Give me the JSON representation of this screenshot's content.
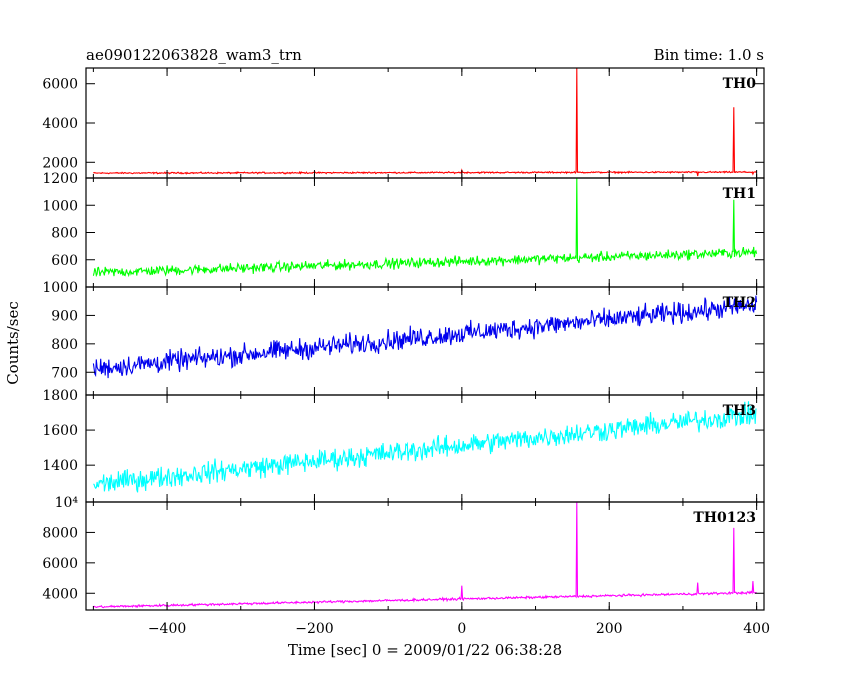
{
  "header": {
    "title": "ae090122063828_wam3_trn",
    "bin_time": "Bin time: 1.0 s"
  },
  "chart_data": {
    "type": "line",
    "xlabel": "Time [sec] 0 = 2009/01/22 06:38:28",
    "ylabel": "Counts/sec",
    "xlim": [
      -510,
      410
    ],
    "x_ticks": [
      -400,
      -200,
      0,
      200,
      400
    ],
    "x_tick_labels": [
      "−400",
      "−200",
      "0",
      "200",
      "400"
    ],
    "panels": [
      {
        "name": "TH0",
        "color": "#ff0000",
        "ylim": [
          1200,
          6800
        ],
        "y_ticks": [
          1200,
          2000,
          4000,
          6000
        ],
        "y_tick_labels": [
          "1200",
          "2000",
          "4000",
          "6000"
        ],
        "baseline": [
          [
            -500,
            1450
          ],
          [
            400,
            1500
          ]
        ],
        "noise": 30,
        "spikes": [
          [
            0,
            1600
          ],
          [
            156,
            6800
          ],
          [
            320,
            1300
          ],
          [
            369,
            4800
          ],
          [
            395,
            1400
          ]
        ]
      },
      {
        "name": "TH1",
        "color": "#00ff00",
        "ylim": [
          400,
          1200
        ],
        "y_ticks": [
          600,
          800,
          1000
        ],
        "y_tick_labels": [
          "600",
          "800",
          "1000"
        ],
        "baseline": [
          [
            -500,
            505
          ],
          [
            400,
            655
          ]
        ],
        "noise": 30,
        "spikes": [
          [
            156,
            1200
          ],
          [
            369,
            1040
          ]
        ]
      },
      {
        "name": "TH2",
        "color": "#0000ee",
        "ylim": [
          620,
          1000
        ],
        "y_ticks": [
          700,
          800,
          900,
          1000
        ],
        "y_tick_labels": [
          "700",
          "800",
          "900",
          "1000"
        ],
        "baseline": [
          [
            -500,
            712
          ],
          [
            400,
            935
          ]
        ],
        "noise": 30,
        "spikes": []
      },
      {
        "name": "TH3",
        "color": "#00ffff",
        "ylim": [
          1190,
          1800
        ],
        "y_ticks": [
          1400,
          1600,
          1800
        ],
        "y_tick_labels": [
          "1400",
          "1600",
          "1800"
        ],
        "baseline": [
          [
            -500,
            1290
          ],
          [
            400,
            1690
          ]
        ],
        "noise": 50,
        "spikes": []
      },
      {
        "name": "TH0123",
        "color": "#ff00ff",
        "ylim": [
          2900,
          10000
        ],
        "y_ticks": [
          4000,
          6000,
          8000,
          10000
        ],
        "y_tick_labels": [
          "4000",
          "6000",
          "8000",
          "10⁴"
        ],
        "baseline": [
          [
            -500,
            3100
          ],
          [
            400,
            4050
          ]
        ],
        "noise": 60,
        "spikes": [
          [
            0,
            4500
          ],
          [
            156,
            10000
          ],
          [
            320,
            4700
          ],
          [
            369,
            8300
          ],
          [
            395,
            4800
          ]
        ]
      }
    ]
  }
}
